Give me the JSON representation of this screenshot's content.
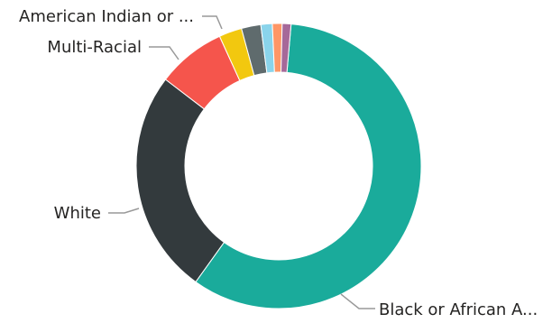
{
  "chart_data": {
    "type": "pie",
    "donut": true,
    "title": "",
    "legend": "none",
    "slices": [
      {
        "label": "Black or African A...",
        "value": 58.5,
        "color": "#1AAB9B",
        "show_label": true
      },
      {
        "label": "White",
        "value": 25.5,
        "color": "#333A3D",
        "show_label": true
      },
      {
        "label": "Multi-Racial",
        "value": 7.8,
        "color": "#F5554C",
        "show_label": true
      },
      {
        "label": "American Indian or ...",
        "value": 2.6,
        "color": "#F2C80F",
        "show_label": true
      },
      {
        "label": "",
        "value": 2.2,
        "color": "#5F6B6D",
        "show_label": false
      },
      {
        "label": "",
        "value": 1.3,
        "color": "#8AD4EB",
        "show_label": false
      },
      {
        "label": "",
        "value": 1.1,
        "color": "#FE9666",
        "show_label": false
      },
      {
        "label": "",
        "value": 1.0,
        "color": "#A66999",
        "show_label": false
      }
    ]
  }
}
